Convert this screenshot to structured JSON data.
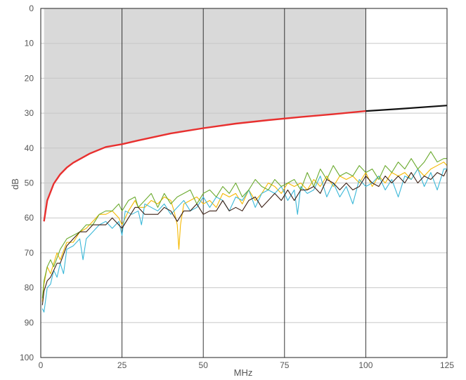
{
  "chart_data": {
    "type": "line",
    "xlabel": "MHz",
    "ylabel": "dB",
    "xlim": [
      0,
      125
    ],
    "ylim": [
      0,
      100
    ],
    "y_inverted": true,
    "x_ticks": [
      "0",
      "25",
      "50",
      "75",
      "100",
      "125"
    ],
    "y_ticks": [
      "0",
      "10",
      "20",
      "30",
      "40",
      "50",
      "60",
      "70",
      "80",
      "90",
      "100"
    ],
    "vertical_grid_lines": [
      25,
      50,
      75,
      100
    ],
    "horizontal_grid": true,
    "limit_region": {
      "x_from": 1,
      "x_to": 100,
      "fill": "#d9d9d9"
    },
    "limit_curve": {
      "color_in_band": "#e8302f",
      "color_beyond": "#111111",
      "x": [
        1,
        2,
        4,
        6,
        8,
        10,
        15,
        20,
        25,
        30,
        40,
        50,
        60,
        70,
        80,
        90,
        100,
        110,
        125
      ],
      "y": [
        61,
        55,
        50.2,
        47.5,
        45.6,
        44.2,
        41.6,
        39.7,
        38.9,
        37.8,
        35.8,
        34.3,
        33.0,
        32.0,
        31.1,
        30.3,
        29.4,
        28.8,
        27.8
      ]
    },
    "series": [
      {
        "color": "#f5b800",
        "x": [
          0.5,
          1,
          2,
          3,
          4,
          5,
          6,
          8,
          10,
          12,
          14,
          16,
          18,
          20,
          22,
          24,
          25,
          27,
          29,
          30,
          32,
          34,
          36,
          38,
          40,
          41,
          42,
          42.5,
          43,
          44,
          46,
          48,
          50,
          52,
          54,
          56,
          58,
          60,
          62,
          64,
          66,
          68,
          70,
          72,
          74,
          76,
          78,
          80,
          82,
          84,
          86,
          88,
          90,
          92,
          94,
          96,
          98,
          100,
          102,
          104,
          106,
          108,
          110,
          112,
          114,
          116,
          118,
          120,
          122,
          124,
          125
        ],
        "y": [
          84,
          79,
          74,
          76,
          73,
          70,
          72,
          67,
          67,
          64,
          63,
          61,
          59,
          59,
          58,
          60,
          62,
          58,
          55,
          57,
          57,
          55,
          56,
          54,
          55,
          58,
          62,
          69,
          62,
          56,
          55,
          54,
          56,
          55,
          57,
          53,
          54,
          53,
          56,
          52,
          55,
          53,
          50,
          51,
          53,
          50,
          51,
          50,
          52,
          49,
          51,
          48,
          51,
          48,
          49,
          48,
          50,
          47,
          51,
          48,
          50,
          47,
          48,
          47,
          49,
          46,
          48,
          46,
          45,
          44,
          45
        ]
      },
      {
        "color": "#3bb8d8",
        "x": [
          0.5,
          1,
          2,
          3,
          4,
          5,
          6,
          7,
          8,
          10,
          12,
          13,
          14,
          16,
          18,
          20,
          22,
          24,
          25,
          26,
          28,
          30,
          31,
          32,
          34,
          36,
          38,
          40,
          42,
          44,
          46,
          48,
          50,
          52,
          54,
          56,
          58,
          60,
          62,
          64,
          66,
          68,
          70,
          72,
          74,
          76,
          78,
          79,
          80,
          82,
          84,
          86,
          88,
          90,
          92,
          94,
          96,
          98,
          100,
          102,
          104,
          106,
          108,
          110,
          112,
          114,
          116,
          118,
          120,
          122,
          124,
          125
        ],
        "y": [
          86,
          87,
          80,
          79,
          75,
          77,
          73,
          76,
          69,
          68,
          66,
          72,
          66,
          64,
          62,
          61,
          63,
          61,
          65,
          58,
          59,
          58,
          62,
          56,
          57,
          58,
          56,
          59,
          57,
          55,
          58,
          57,
          54,
          57,
          54,
          55,
          58,
          54,
          55,
          52,
          57,
          53,
          52,
          53,
          51,
          55,
          52,
          59,
          51,
          53,
          52,
          48,
          54,
          50,
          54,
          51,
          56,
          49,
          51,
          50,
          48,
          52,
          49,
          54,
          48,
          49,
          46,
          51,
          47,
          52,
          46,
          46
        ]
      },
      {
        "color": "#6aaa2e",
        "x": [
          0.5,
          1,
          2,
          3,
          4,
          6,
          8,
          10,
          12,
          14,
          16,
          18,
          20,
          22,
          24,
          25,
          27,
          29,
          30,
          32,
          34,
          36,
          38,
          40,
          42,
          44,
          46,
          48,
          50,
          52,
          54,
          56,
          58,
          60,
          62,
          64,
          66,
          68,
          70,
          72,
          74,
          76,
          78,
          80,
          82,
          84,
          86,
          88,
          90,
          92,
          94,
          96,
          98,
          100,
          102,
          104,
          106,
          108,
          110,
          112,
          114,
          116,
          118,
          120,
          122,
          124,
          125
        ],
        "y": [
          83,
          78,
          74,
          72,
          74,
          69,
          66,
          65,
          64,
          62,
          62,
          59,
          58,
          58,
          56,
          58,
          55,
          54,
          57,
          55,
          53,
          57,
          53,
          56,
          54,
          53,
          52,
          56,
          53,
          52,
          54,
          51,
          53,
          50,
          54,
          52,
          49,
          51,
          52,
          49,
          51,
          50,
          49,
          52,
          47,
          51,
          46,
          49,
          45,
          48,
          47,
          48,
          45,
          47,
          46,
          49,
          45,
          47,
          44,
          46,
          43,
          46,
          44,
          41,
          44,
          43,
          43
        ]
      },
      {
        "color": "#3a1f14",
        "x": [
          0.5,
          1,
          2,
          3,
          4,
          5,
          6,
          8,
          10,
          12,
          14,
          16,
          18,
          20,
          22,
          24,
          25,
          27,
          29,
          30,
          32,
          34,
          36,
          38,
          40,
          42,
          44,
          46,
          48,
          50,
          52,
          54,
          56,
          58,
          60,
          62,
          64,
          66,
          68,
          70,
          72,
          74,
          76,
          78,
          80,
          82,
          84,
          86,
          88,
          90,
          92,
          94,
          96,
          98,
          100,
          102,
          104,
          106,
          108,
          110,
          112,
          114,
          116,
          118,
          120,
          122,
          124,
          125
        ],
        "y": [
          85,
          81,
          78,
          77,
          75,
          73,
          73,
          68,
          66,
          64,
          64,
          62,
          62,
          62,
          60,
          62,
          63,
          60,
          57,
          57,
          59,
          59,
          59,
          57,
          58,
          61,
          58,
          58,
          56,
          59,
          58,
          58,
          55,
          58,
          57,
          58,
          55,
          54,
          57,
          55,
          53,
          55,
          52,
          55,
          52,
          52,
          51,
          53,
          49,
          50,
          52,
          50,
          52,
          51,
          48,
          50,
          51,
          48,
          50,
          48,
          50,
          47,
          50,
          48,
          49,
          47,
          48,
          46
        ]
      }
    ]
  }
}
